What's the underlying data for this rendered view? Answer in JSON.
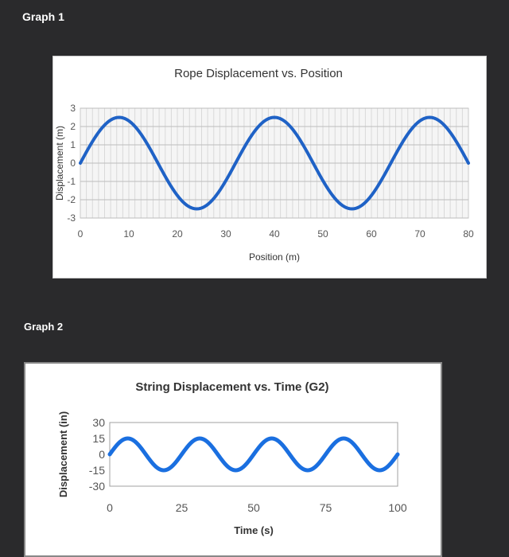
{
  "labels": {
    "graph1": "Graph 1",
    "graph2": "Graph 2"
  },
  "chart_data": [
    {
      "type": "line",
      "title": "Rope Displacement vs. Position",
      "xlabel": "Position (m)",
      "ylabel": "Displacement (m)",
      "xlim": [
        0,
        80
      ],
      "ylim": [
        -3,
        3
      ],
      "xticks": [
        0,
        10,
        20,
        30,
        40,
        50,
        60,
        70,
        80
      ],
      "yticks": [
        3,
        2,
        1,
        0,
        -1,
        -2,
        -3
      ],
      "grid": true,
      "series": [
        {
          "color": "#1f62c6",
          "amplitude": 2.5,
          "wavelength": 32,
          "x": [
            0,
            4,
            8,
            12,
            16,
            20,
            24,
            28,
            32,
            36,
            40,
            44,
            48,
            52,
            56,
            60,
            64,
            68,
            72,
            76,
            80
          ],
          "y": [
            0,
            1.77,
            2.5,
            1.77,
            0,
            -1.77,
            -2.5,
            -1.77,
            0,
            1.77,
            2.5,
            1.77,
            0,
            -1.77,
            -2.5,
            -1.77,
            0,
            1.77,
            2.5,
            1.77,
            0
          ]
        }
      ]
    },
    {
      "type": "line",
      "title": "String Displacement vs. Time (G2)",
      "xlabel": "Time (s)",
      "ylabel": "Displacement (in)",
      "xlim": [
        0,
        100
      ],
      "ylim": [
        -30,
        30
      ],
      "xticks": [
        0,
        25,
        50,
        75,
        100
      ],
      "yticks": [
        30,
        15,
        0,
        -15,
        -30
      ],
      "grid": false,
      "series": [
        {
          "color": "#1a6fe0",
          "amplitude": 15,
          "period": 25,
          "x": [
            0,
            6.25,
            12.5,
            18.75,
            25,
            31.25,
            37.5,
            43.75,
            50,
            56.25,
            62.5,
            68.75,
            75,
            81.25,
            87.5,
            93.75,
            100
          ],
          "y": [
            0,
            15,
            0,
            -15,
            0,
            15,
            0,
            -15,
            0,
            15,
            0,
            -15,
            0,
            15,
            0,
            -15,
            0
          ]
        }
      ]
    }
  ]
}
